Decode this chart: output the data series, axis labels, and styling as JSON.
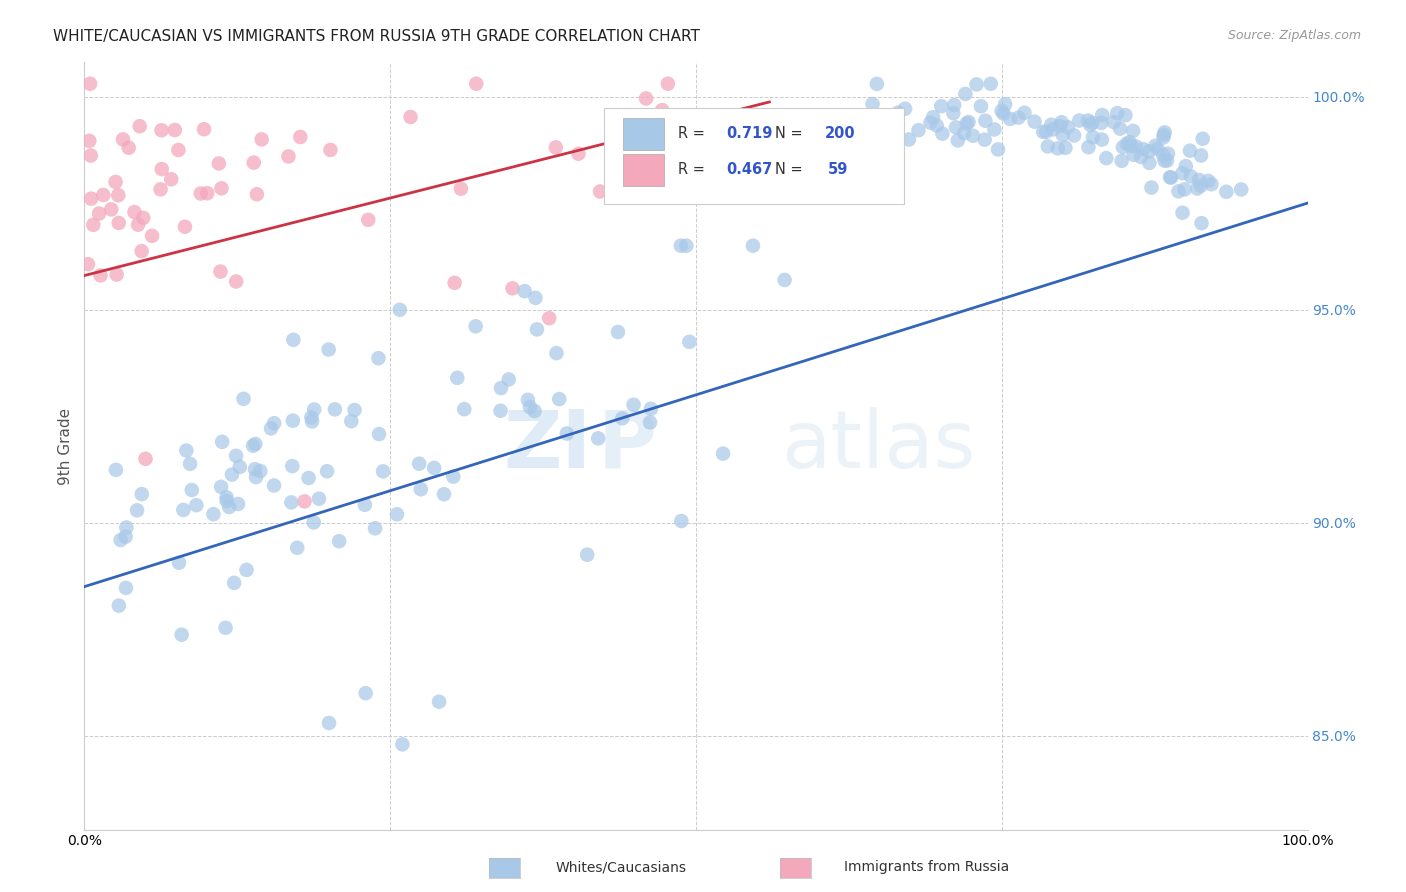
{
  "title": "WHITE/CAUCASIAN VS IMMIGRANTS FROM RUSSIA 9TH GRADE CORRELATION CHART",
  "source": "Source: ZipAtlas.com",
  "ylabel": "9th Grade",
  "xlim": [
    0.0,
    1.0
  ],
  "ylim": [
    0.828,
    1.008
  ],
  "yticks": [
    0.85,
    0.9,
    0.95,
    1.0
  ],
  "xticks": [
    0.0,
    0.25,
    0.5,
    0.75,
    1.0
  ],
  "blue_color": "#A8C8E8",
  "pink_color": "#F4A8BC",
  "blue_line_color": "#3366BB",
  "pink_line_color": "#CC3344",
  "blue_R": 0.719,
  "blue_N": 200,
  "pink_R": 0.467,
  "pink_N": 59,
  "legend_label_blue": "Whites/Caucasians",
  "legend_label_pink": "Immigrants from Russia",
  "watermark_left": "ZI",
  "watermark_right": "Patlas",
  "background_color": "#FFFFFF",
  "grid_color": "#CCCCCC",
  "title_color": "#333333",
  "right_label_color": "#4488CC",
  "legend_text_color": "#3355CC"
}
